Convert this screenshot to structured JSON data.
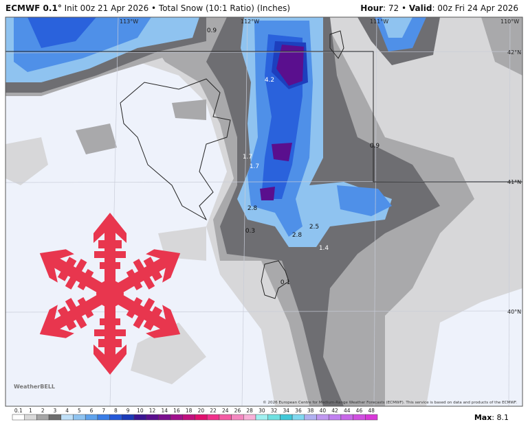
{
  "header": {
    "left": [
      "ECMWF 0.1°",
      " Init 00z 21 Apr 2026 • Total Snow (10:1 Ratio) (Inches)"
    ],
    "right": [
      "Hour",
      ": 72 • ",
      "Valid",
      ": 00z Fri 24 Apr 2026"
    ]
  },
  "map": {
    "longitudes": [
      "113°W",
      "112°W",
      "111°W",
      "110°W"
    ],
    "latitudes": [
      "42°N",
      "41°N",
      "40°N"
    ],
    "point_labels": [
      "0.9",
      "4.2",
      "0.9",
      "1.7",
      "1.7",
      "2.8",
      "0.3",
      "2.5",
      "2.8",
      "1.4",
      "0.1"
    ],
    "credit": "© 2026 European Centre for Medium-Range Weather Forecasts (ECMWF). This service is based on data and products of the ECMWF.",
    "logo": "WeatherBELL"
  },
  "colorbar": {
    "labels": [
      "0.1",
      "1",
      "2",
      "3",
      "4",
      "5",
      "6",
      "7",
      "8",
      "9",
      "10",
      "12",
      "14",
      "16",
      "18",
      "20",
      "22",
      "24",
      "26",
      "28",
      "30",
      "32",
      "34",
      "36",
      "38",
      "40",
      "42",
      "44",
      "46",
      "48"
    ],
    "max": [
      "Max",
      ": 8.1"
    ]
  }
}
